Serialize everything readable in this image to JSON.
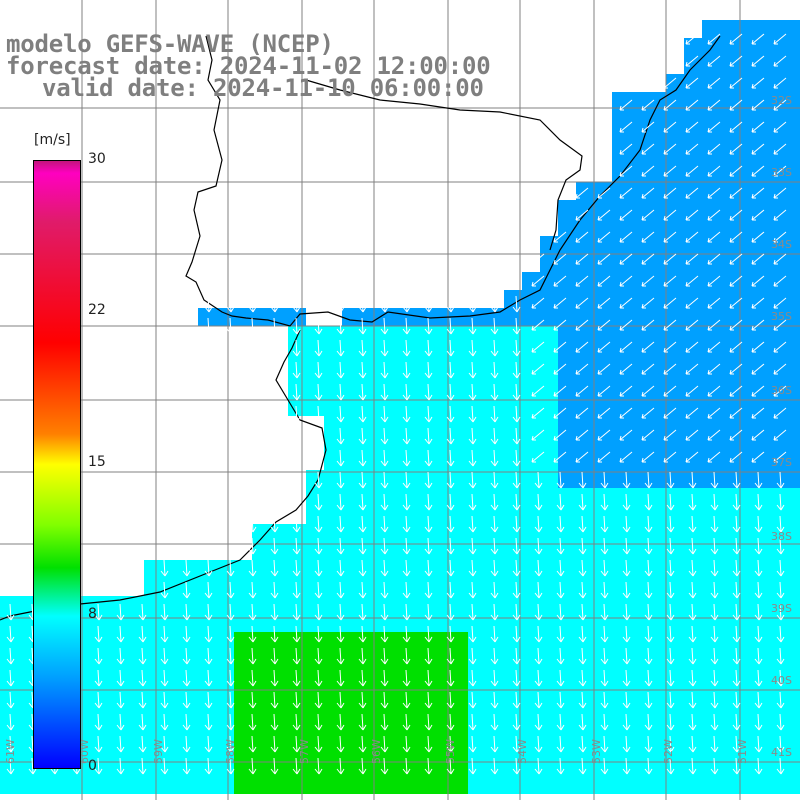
{
  "titles": {
    "line1": "modelo GEFS-WAVE (NCEP)",
    "line2": "forecast date: 2024-11-02 12:00:00",
    "line3": "valid date: 2024-11-10 06:00:00"
  },
  "colorbar": {
    "unit": "[m/s]",
    "ticks": [
      "30",
      "22",
      "15",
      "8",
      "0"
    ],
    "range": [
      0,
      30
    ],
    "colors": [
      "#0000ff",
      "#00a0ff",
      "#00ffff",
      "#00e000",
      "#80ff00",
      "#ffff00",
      "#ff8000",
      "#ff0000",
      "#c2157c"
    ]
  },
  "map_labels": {
    "lat": [
      "32S",
      "33S",
      "34S",
      "35S",
      "36S",
      "37S",
      "38S",
      "39S",
      "40S",
      "41S"
    ],
    "lon": [
      "61W",
      "60W",
      "59W",
      "58W",
      "57W",
      "56W",
      "55W",
      "54W",
      "53W",
      "52W",
      "51W"
    ]
  },
  "field": {
    "ocean_color_shelf": "#3cf3c8",
    "ocean_color_open": "#1fb0ff",
    "land_color": "#ffffff",
    "grid_color": "#808080",
    "arrow_color": "#ffffff"
  }
}
